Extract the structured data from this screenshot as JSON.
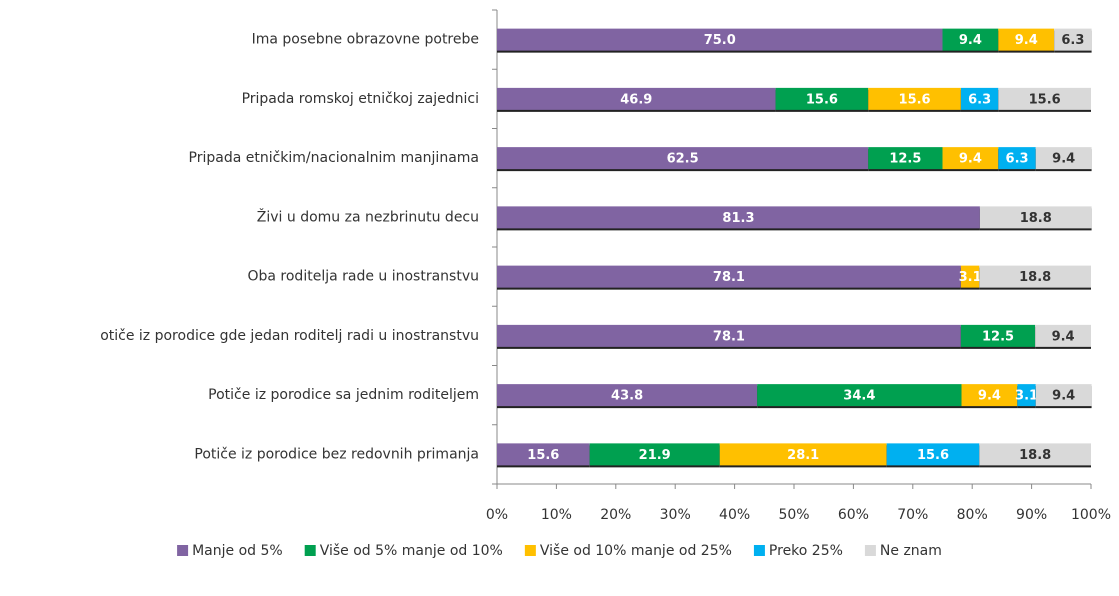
{
  "chart_data": {
    "type": "stacked-bar-horizontal",
    "categories": [
      "Ima posebne obrazovne potrebe",
      "Pripada romskoj etničkoj zajednici",
      "Pripada etničkim/nacionalnim manjinama",
      "Živi u domu za nezbrinutu decu",
      "Oba roditelja rade u inostranstvu",
      "otiče iz porodice gde jedan roditelj radi u inostranstvu",
      "Potiče iz porodice sa jednim roditeljem",
      "Potiče iz porodice bez redovnih primanja"
    ],
    "series": [
      {
        "name": "Manje od 5%",
        "color": "#8064a2",
        "values": [
          75.0,
          46.9,
          62.5,
          81.3,
          78.1,
          78.1,
          43.8,
          15.6
        ],
        "value_labels": [
          "75.0",
          "46.9",
          "62.5",
          "81.3",
          "78.1",
          "78.1",
          "43.8",
          "15.6"
        ]
      },
      {
        "name": "Više od 5% manje od 10%",
        "color": "#00a050",
        "values": [
          9.4,
          15.6,
          12.5,
          null,
          null,
          12.5,
          34.4,
          21.9
        ]
      },
      {
        "name": "Više od 10% manje od 25%",
        "color": "#ffc000",
        "values": [
          9.4,
          15.6,
          9.4,
          null,
          3.1,
          null,
          9.4,
          28.1
        ]
      },
      {
        "name": "Preko 25%",
        "color": "#00b0f0",
        "values": [
          null,
          6.3,
          6.3,
          null,
          null,
          null,
          3.1,
          15.6
        ]
      },
      {
        "name": "Ne znam",
        "color": "#d9d9d9",
        "values": [
          6.3,
          15.6,
          9.4,
          18.8,
          18.8,
          9.4,
          9.4,
          18.8
        ]
      }
    ],
    "xlim": [
      0,
      100
    ],
    "xticks": [
      {
        "value": 0,
        "label": "0%"
      },
      {
        "value": 10,
        "label": "10%"
      },
      {
        "value": 20,
        "label": "20%"
      },
      {
        "value": 30,
        "label": "30%"
      },
      {
        "value": 40,
        "label": "40%"
      },
      {
        "value": 50,
        "label": "50%"
      },
      {
        "value": 60,
        "label": "60%"
      },
      {
        "value": 70,
        "label": "70%"
      },
      {
        "value": 80,
        "label": "80%"
      },
      {
        "value": 90,
        "label": "90%"
      },
      {
        "value": 100,
        "label": "100%"
      }
    ],
    "legend": "bottom"
  }
}
